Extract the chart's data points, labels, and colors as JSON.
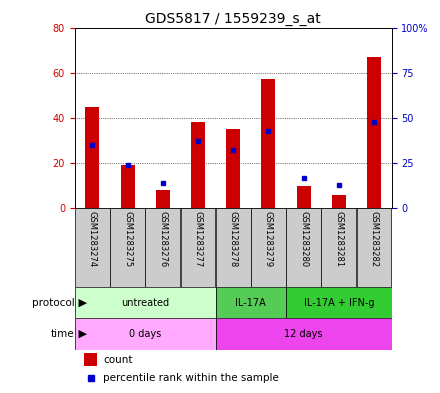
{
  "title": "GDS5817 / 1559239_s_at",
  "samples": [
    "GSM1283274",
    "GSM1283275",
    "GSM1283276",
    "GSM1283277",
    "GSM1283278",
    "GSM1283279",
    "GSM1283280",
    "GSM1283281",
    "GSM1283282"
  ],
  "count_values": [
    45,
    19,
    8,
    38,
    35,
    57,
    10,
    6,
    67
  ],
  "percentile_values": [
    35,
    24,
    14,
    37,
    32,
    43,
    17,
    13,
    48
  ],
  "ylim_left": [
    0,
    80
  ],
  "ylim_right": [
    0,
    100
  ],
  "yticks_left": [
    0,
    20,
    40,
    60,
    80
  ],
  "yticks_right": [
    0,
    25,
    50,
    75,
    100
  ],
  "ytick_labels_right": [
    "0",
    "25",
    "50",
    "75",
    "100%"
  ],
  "protocol_groups": [
    {
      "label": "untreated",
      "start": 0,
      "end": 4,
      "color": "#ccffcc"
    },
    {
      "label": "IL-17A",
      "start": 4,
      "end": 6,
      "color": "#55cc55"
    },
    {
      "label": "IL-17A + IFN-g",
      "start": 6,
      "end": 9,
      "color": "#33cc33"
    }
  ],
  "time_groups": [
    {
      "label": "0 days",
      "start": 0,
      "end": 4,
      "color": "#ffaaff"
    },
    {
      "label": "12 days",
      "start": 4,
      "end": 9,
      "color": "#ee44ee"
    }
  ],
  "bar_color": "#cc0000",
  "dot_color": "#0000cc",
  "sample_bg_color": "#cccccc",
  "left_axis_color": "#cc0000",
  "right_axis_color": "#0000cc",
  "grid_color": "#000000",
  "title_fontsize": 10,
  "tick_fontsize": 7,
  "label_fontsize": 8,
  "bar_width": 0.4
}
